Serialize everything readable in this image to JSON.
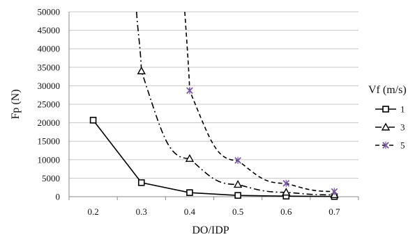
{
  "chart_data": {
    "type": "line",
    "xlabel": "DO/IDP",
    "ylabel": "Fp (N)",
    "x": [
      0.2,
      0.3,
      0.4,
      0.5,
      0.6,
      0.7
    ],
    "x_ticks": [
      "0.2",
      "0.3",
      "0.4",
      "0.5",
      "0.6",
      "0.7"
    ],
    "ylim": [
      0,
      50000
    ],
    "y_ticks": [
      "0",
      "5000",
      "10000",
      "15000",
      "20000",
      "25000",
      "30000",
      "35000",
      "40000",
      "45000",
      "50000"
    ],
    "grid": "horizontal",
    "legend": {
      "title": "Vf (m/s)",
      "placement": "right"
    },
    "series": [
      {
        "name": "1",
        "marker": "square",
        "line_style": "solid",
        "x": [
          0.2,
          0.3,
          0.4,
          0.5,
          0.6,
          0.7
        ],
        "values": [
          20700,
          3800,
          1100,
          350,
          150,
          50
        ],
        "color": "#000000"
      },
      {
        "name": "3",
        "marker": "triangle",
        "line_style": "dash-dot",
        "x": [
          0.3,
          0.4,
          0.5,
          0.6,
          0.7
        ],
        "values": [
          34000,
          10300,
          3300,
          1200,
          500
        ],
        "color": "#000000",
        "continues_above_axis": true
      },
      {
        "name": "5",
        "marker": "asterisk",
        "line_style": "dashed",
        "x": [
          0.4,
          0.5,
          0.6,
          0.7
        ],
        "values": [
          28700,
          9800,
          3600,
          1400
        ],
        "color": "#000000",
        "marker_color": "#7b5aa6",
        "continues_above_axis": true
      }
    ]
  }
}
